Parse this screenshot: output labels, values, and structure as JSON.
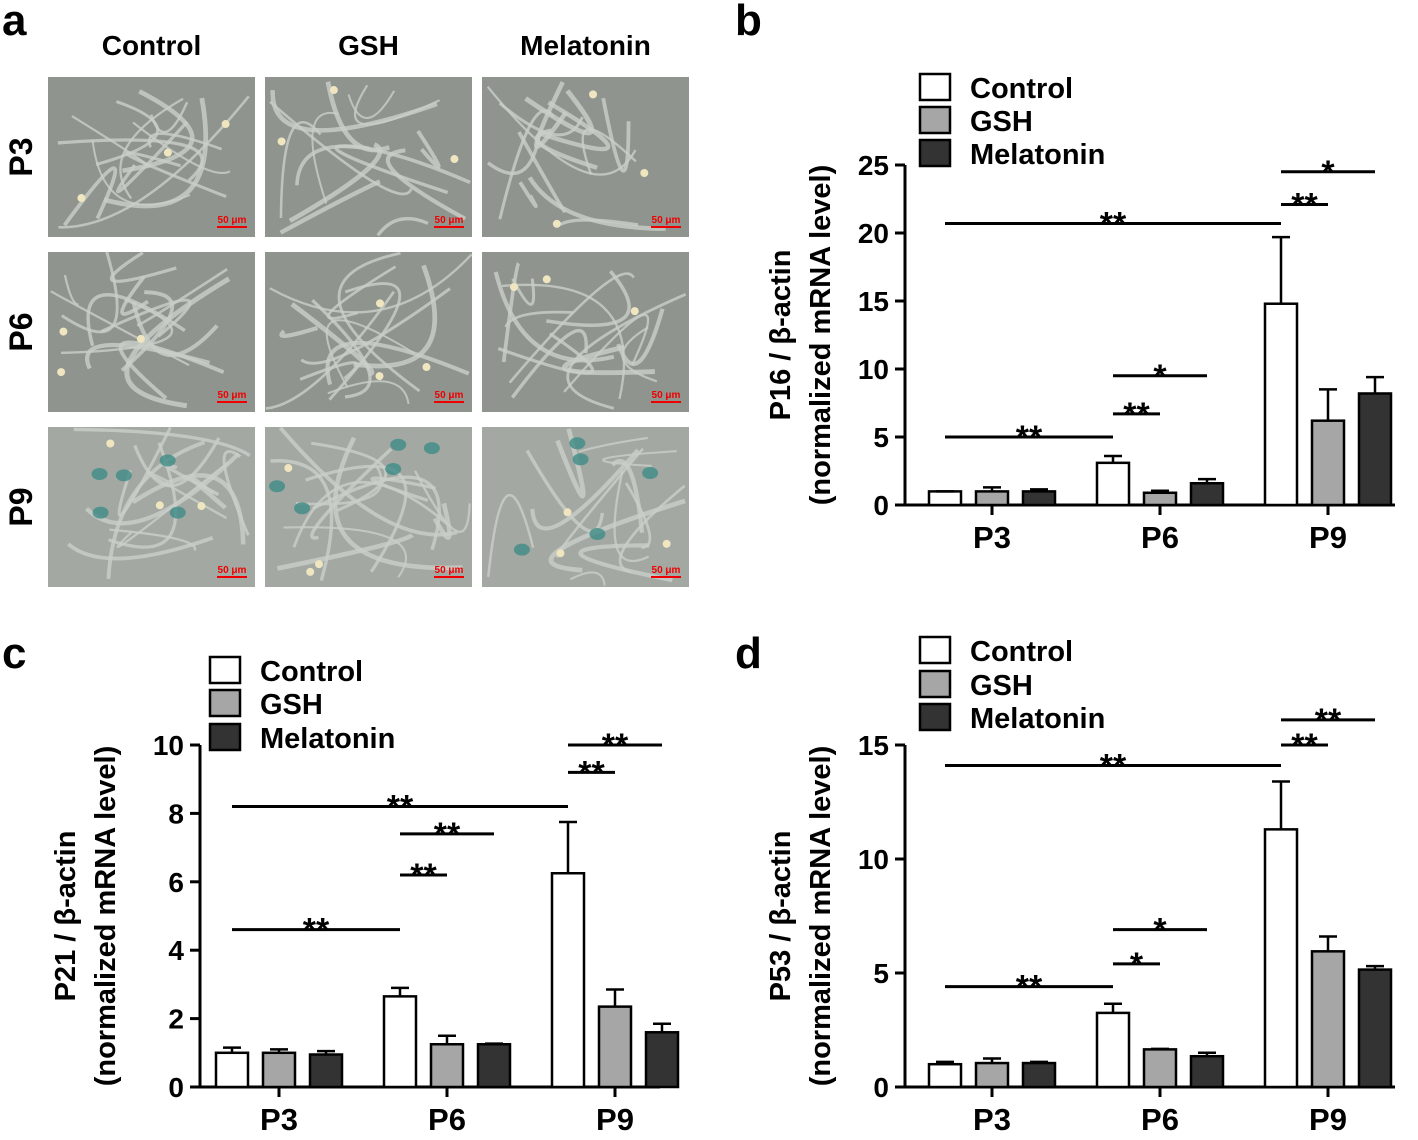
{
  "panel_a": {
    "label": "a",
    "columns": [
      "Control",
      "GSH",
      "Melatonin"
    ],
    "rows": [
      "P3",
      "P6",
      "P9"
    ],
    "scale_bar": "50 μm"
  },
  "chart_data": [
    {
      "type": "bar",
      "label": "b",
      "ylabel_lines": [
        "P16 / β-actin",
        "(normalized mRNA level)"
      ],
      "categories": [
        "P3",
        "P6",
        "P9"
      ],
      "series": [
        {
          "name": "Control",
          "color": "#ffffff",
          "values": [
            1.0,
            3.1,
            14.8
          ],
          "errors": [
            0,
            0.5,
            4.9
          ]
        },
        {
          "name": "GSH",
          "color": "#a6a6a6",
          "values": [
            1.0,
            0.9,
            6.2
          ],
          "errors": [
            0.3,
            0.15,
            2.3
          ]
        },
        {
          "name": "Melatonin",
          "color": "#333333",
          "values": [
            1.0,
            1.6,
            8.2
          ],
          "errors": [
            0.15,
            0.3,
            1.2
          ]
        }
      ],
      "ylim": [
        0,
        25
      ],
      "yticks": [
        0,
        5,
        10,
        15,
        20,
        25
      ],
      "annotations": [
        {
          "text": "**",
          "from": [
            0,
            0
          ],
          "to": [
            1,
            0
          ]
        },
        {
          "text": "**",
          "from": [
            1,
            0
          ],
          "to": [
            1,
            1
          ]
        },
        {
          "text": "*",
          "from": [
            1,
            0
          ],
          "to": [
            1,
            2
          ]
        },
        {
          "text": "**",
          "from": [
            0,
            0
          ],
          "to": [
            2,
            0
          ]
        },
        {
          "text": "**",
          "from": [
            2,
            0
          ],
          "to": [
            2,
            1
          ]
        },
        {
          "text": "*",
          "from": [
            2,
            0
          ],
          "to": [
            2,
            2
          ]
        }
      ]
    },
    {
      "type": "bar",
      "label": "c",
      "ylabel_lines": [
        "P21 / β-actin",
        "(normalized mRNA level)"
      ],
      "categories": [
        "P3",
        "P6",
        "P9"
      ],
      "series": [
        {
          "name": "Control",
          "color": "#ffffff",
          "values": [
            1.0,
            2.65,
            6.25
          ],
          "errors": [
            0.15,
            0.25,
            1.5
          ]
        },
        {
          "name": "GSH",
          "color": "#a6a6a6",
          "values": [
            1.0,
            1.25,
            2.35
          ],
          "errors": [
            0.1,
            0.25,
            0.5
          ]
        },
        {
          "name": "Melatonin",
          "color": "#333333",
          "values": [
            0.95,
            1.25,
            1.6
          ],
          "errors": [
            0.1,
            0.02,
            0.25
          ]
        }
      ],
      "ylim": [
        0,
        10
      ],
      "yticks": [
        0,
        2,
        4,
        6,
        8,
        10
      ],
      "annotations": [
        {
          "text": "**",
          "from": [
            0,
            0
          ],
          "to": [
            1,
            0
          ]
        },
        {
          "text": "**",
          "from": [
            1,
            0
          ],
          "to": [
            1,
            1
          ]
        },
        {
          "text": "**",
          "from": [
            1,
            0
          ],
          "to": [
            1,
            2
          ]
        },
        {
          "text": "**",
          "from": [
            0,
            0
          ],
          "to": [
            2,
            0
          ]
        },
        {
          "text": "**",
          "from": [
            2,
            0
          ],
          "to": [
            2,
            1
          ]
        },
        {
          "text": "**",
          "from": [
            2,
            0
          ],
          "to": [
            2,
            2
          ]
        }
      ]
    },
    {
      "type": "bar",
      "label": "d",
      "ylabel_lines": [
        "P53 / β-actin",
        "(normalized mRNA level)"
      ],
      "categories": [
        "P3",
        "P6",
        "P9"
      ],
      "series": [
        {
          "name": "Control",
          "color": "#ffffff",
          "values": [
            1.0,
            3.25,
            11.3
          ],
          "errors": [
            0.1,
            0.4,
            2.1
          ]
        },
        {
          "name": "GSH",
          "color": "#a6a6a6",
          "values": [
            1.05,
            1.65,
            5.95
          ],
          "errors": [
            0.2,
            0.02,
            0.65
          ]
        },
        {
          "name": "Melatonin",
          "color": "#333333",
          "values": [
            1.05,
            1.35,
            5.15
          ],
          "errors": [
            0.05,
            0.15,
            0.15
          ]
        }
      ],
      "ylim": [
        0,
        15
      ],
      "yticks": [
        0,
        5,
        10,
        15
      ],
      "annotations": [
        {
          "text": "**",
          "from": [
            0,
            0
          ],
          "to": [
            1,
            0
          ]
        },
        {
          "text": "*",
          "from": [
            1,
            0
          ],
          "to": [
            1,
            1
          ]
        },
        {
          "text": "*",
          "from": [
            1,
            0
          ],
          "to": [
            1,
            2
          ]
        },
        {
          "text": "**",
          "from": [
            0,
            0
          ],
          "to": [
            2,
            0
          ]
        },
        {
          "text": "**",
          "from": [
            2,
            0
          ],
          "to": [
            2,
            1
          ]
        },
        {
          "text": "**",
          "from": [
            2,
            0
          ],
          "to": [
            2,
            2
          ]
        }
      ]
    }
  ]
}
